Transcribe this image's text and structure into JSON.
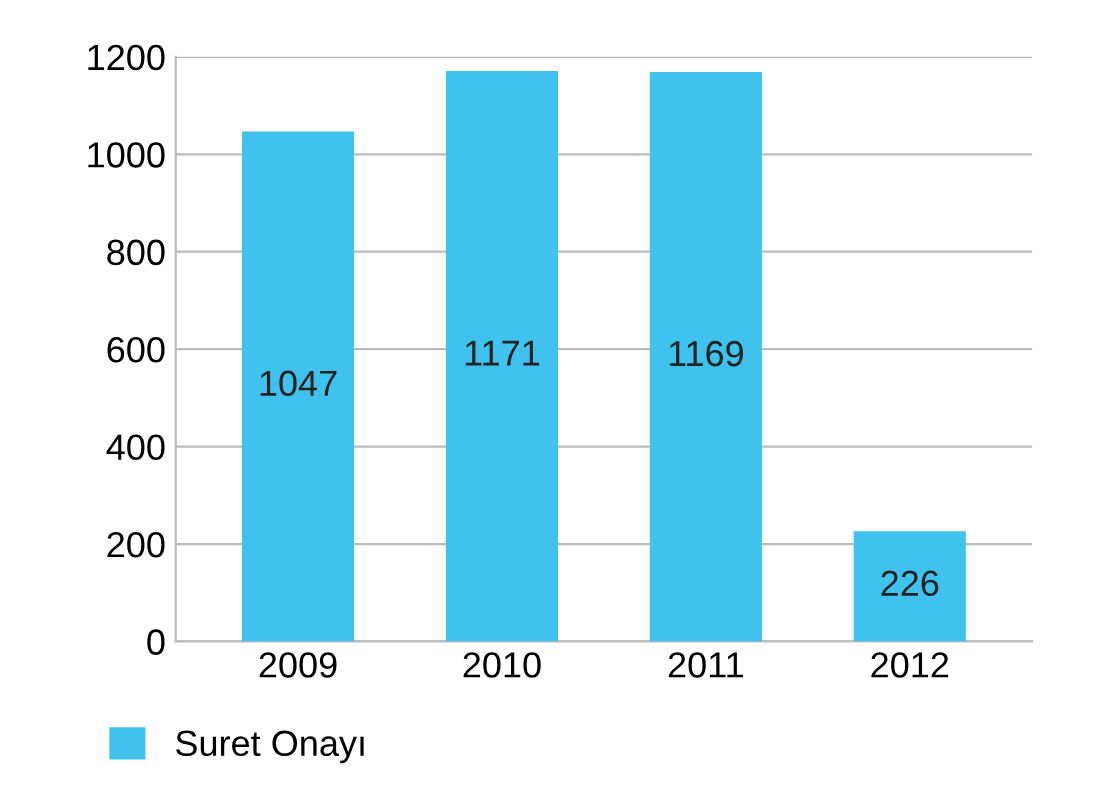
{
  "chart_data": {
    "type": "bar",
    "categories": [
      "2009",
      "2010",
      "2011",
      "2012"
    ],
    "series": [
      {
        "name": "Suret Onayı",
        "color": "#3fc3ee",
        "values": [
          1047,
          1171,
          1169,
          226
        ]
      }
    ],
    "ylim": [
      0,
      1200
    ],
    "yticks": [
      0,
      200,
      400,
      600,
      800,
      1000,
      1200
    ],
    "grid": "y",
    "legend": "bottom left",
    "data_labels": true
  }
}
